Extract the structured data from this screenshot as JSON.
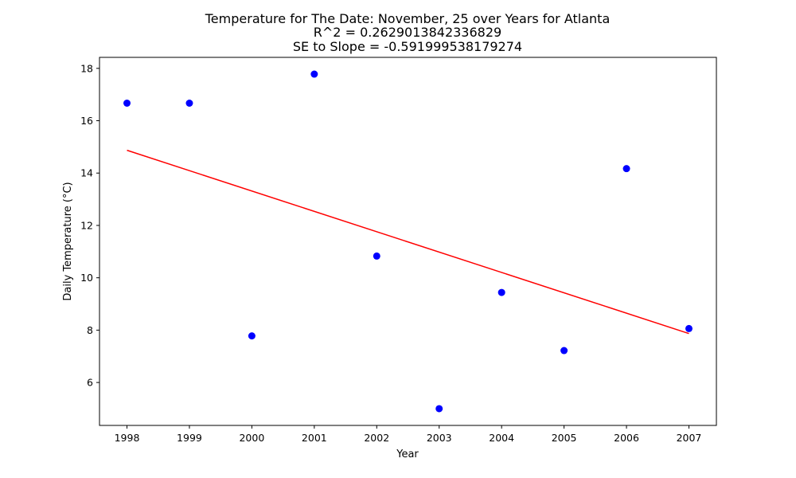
{
  "chart_data": {
    "type": "scatter",
    "title_lines": [
      "Temperature for The Date: November, 25 over Years for Atlanta",
      "R^2 = 0.2629013842336829",
      "SE to Slope = -0.591999538179274"
    ],
    "xlabel": "Year",
    "ylabel": "Daily Temperature (°C)",
    "x_ticks": [
      "1998",
      "1999",
      "2000",
      "2001",
      "2002",
      "2003",
      "2004",
      "2005",
      "2006",
      "2007"
    ],
    "y_ticks": [
      "6",
      "8",
      "10",
      "12",
      "14",
      "16",
      "18"
    ],
    "xlim": [
      1997.56,
      2007.44
    ],
    "ylim": [
      4.36,
      18.42
    ],
    "series": [
      {
        "color": "#0000ff",
        "x": [
          1998,
          1999,
          2000,
          2001,
          2002,
          2003,
          2004,
          2005,
          2006,
          2007
        ],
        "y": [
          16.67,
          16.67,
          7.78,
          17.78,
          10.83,
          5.0,
          9.44,
          7.22,
          14.17,
          8.06
        ]
      }
    ],
    "trendline": {
      "color": "#ff0000",
      "x": [
        1998,
        2007
      ],
      "y": [
        14.87,
        7.87
      ]
    },
    "grid": false,
    "legend": "none"
  }
}
